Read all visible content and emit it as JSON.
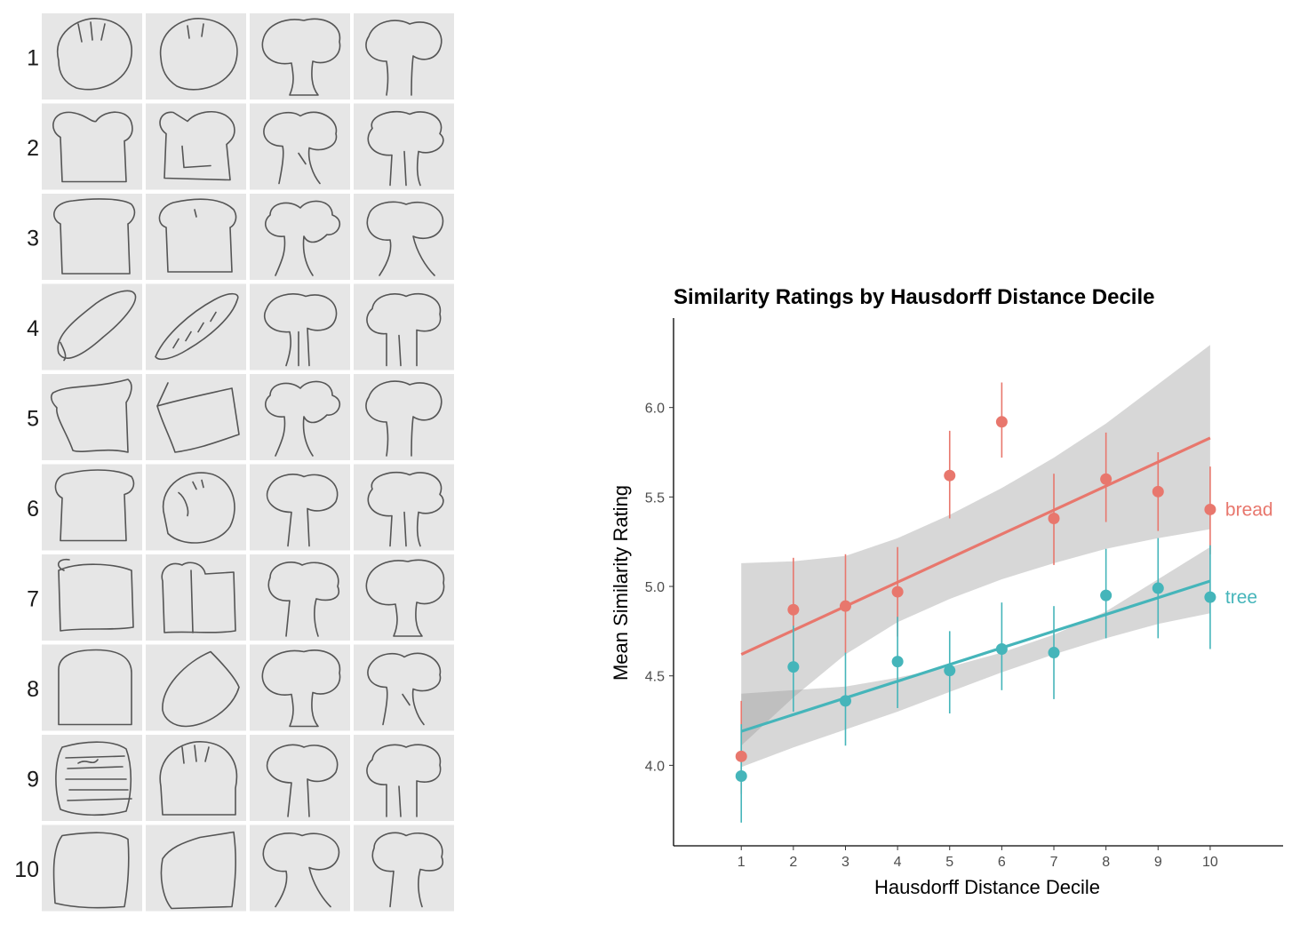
{
  "sketch_grid": {
    "row_labels": [
      "1",
      "2",
      "3",
      "4",
      "5",
      "6",
      "7",
      "8",
      "9",
      "10"
    ],
    "columns": [
      "bread-sketch",
      "bread-sketch",
      "tree-sketch",
      "tree-sketch"
    ]
  },
  "chart_data": {
    "type": "scatter",
    "title": "Similarity Ratings by Hausdorff Distance Decile",
    "xlabel": "Hausdorff Distance Decile",
    "ylabel": "Mean Similarity Rating",
    "x_ticks": [
      1,
      2,
      3,
      4,
      5,
      6,
      7,
      8,
      9,
      10
    ],
    "y_ticks": [
      "4.0",
      "4.5",
      "5.0",
      "5.5",
      "6.0"
    ],
    "xlim": [
      -0.3,
      11.4
    ],
    "ylim": [
      3.55,
      6.5
    ],
    "grid": false,
    "legend": "direct labels at right end of each series",
    "series": [
      {
        "name": "bread",
        "color": "#E8776D",
        "x": [
          1,
          2,
          3,
          4,
          5,
          6,
          7,
          8,
          9,
          10
        ],
        "y": [
          4.05,
          4.87,
          4.89,
          4.97,
          5.62,
          5.92,
          5.38,
          5.6,
          5.53,
          5.43
        ],
        "error_low": [
          3.84,
          4.58,
          4.63,
          4.72,
          5.38,
          5.72,
          5.12,
          5.36,
          5.31,
          5.18
        ],
        "error_high": [
          4.36,
          5.16,
          5.18,
          5.22,
          5.87,
          6.14,
          5.63,
          5.86,
          5.75,
          5.67
        ],
        "fit": {
          "x": [
            1,
            10
          ],
          "y": [
            4.62,
            5.83
          ]
        },
        "ci_band": {
          "x": [
            1,
            2,
            3,
            4,
            5,
            6,
            7,
            8,
            9,
            10
          ],
          "lower": [
            4.11,
            4.38,
            4.62,
            4.8,
            4.93,
            5.04,
            5.13,
            5.21,
            5.27,
            5.32
          ],
          "upper": [
            5.13,
            5.14,
            5.17,
            5.27,
            5.4,
            5.55,
            5.72,
            5.91,
            6.13,
            6.35
          ]
        }
      },
      {
        "name": "tree",
        "color": "#45B5BA",
        "x": [
          1,
          2,
          3,
          4,
          5,
          6,
          7,
          8,
          9,
          10
        ],
        "y": [
          3.94,
          4.55,
          4.36,
          4.58,
          4.53,
          4.65,
          4.63,
          4.95,
          4.99,
          4.94
        ],
        "error_low": [
          3.68,
          4.3,
          4.11,
          4.32,
          4.29,
          4.42,
          4.37,
          4.71,
          4.71,
          4.65
        ],
        "error_high": [
          4.23,
          4.78,
          4.63,
          4.83,
          4.75,
          4.91,
          4.89,
          5.21,
          5.27,
          5.23
        ],
        "fit": {
          "x": [
            1,
            10
          ],
          "y": [
            4.19,
            5.03
          ]
        },
        "ci_band": {
          "x": [
            1,
            2,
            3,
            4,
            5,
            6,
            7,
            8,
            9,
            10
          ],
          "lower": [
            3.99,
            4.1,
            4.2,
            4.3,
            4.41,
            4.52,
            4.62,
            4.71,
            4.79,
            4.85
          ],
          "upper": [
            4.4,
            4.42,
            4.44,
            4.49,
            4.55,
            4.63,
            4.73,
            4.86,
            5.04,
            5.22
          ]
        }
      }
    ]
  }
}
